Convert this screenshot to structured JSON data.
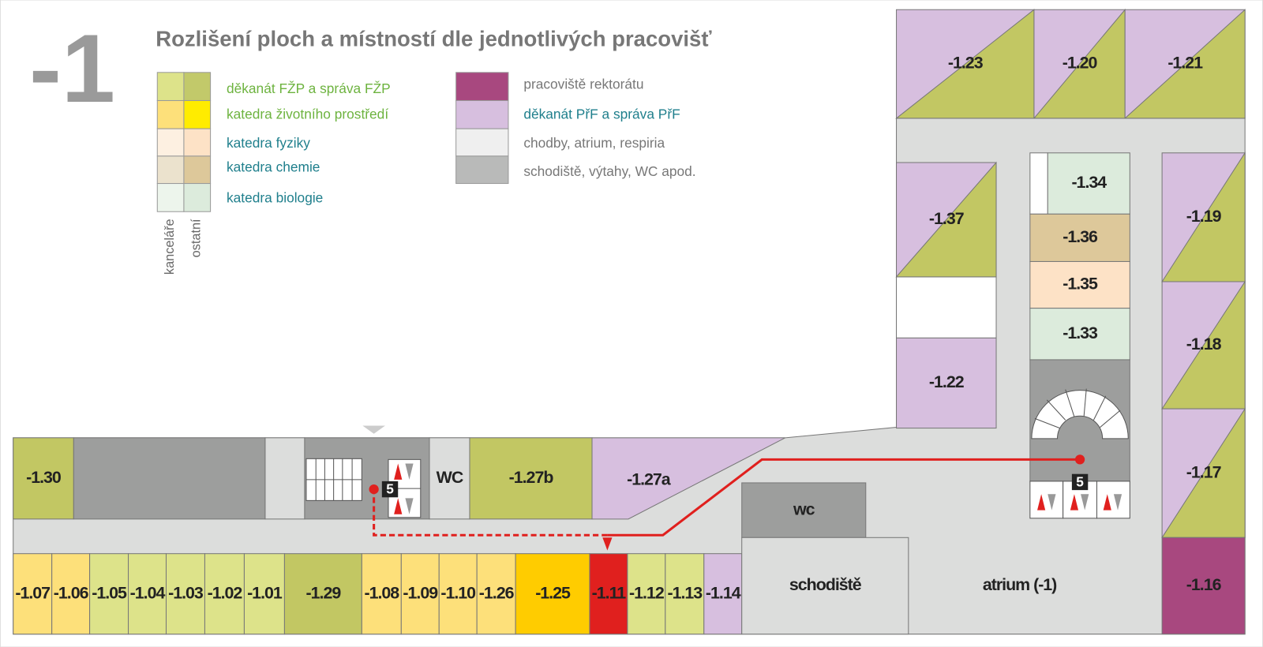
{
  "floor": "-1",
  "title": "Rozlišení ploch a místností dle jednotlivých pracovišť",
  "legend": {
    "column_labels": [
      "kanceláře",
      "ostatní"
    ],
    "items": [
      "děkanát FŽP a správa FŽP",
      "katedra životního prostředí",
      "katedra fyziky",
      "katedra chemie",
      "katedra biologie"
    ],
    "items2": [
      "pracoviště rektorátu",
      "děkanát PřF a správa PřF",
      "chodby, atrium, respiria",
      "schodiště, výtahy, WC apod."
    ]
  },
  "rooms": [
    "-1.07",
    "-1.06",
    "-1.05",
    "-1.04",
    "-1.03",
    "-1.02",
    "-1.01",
    "-1.29",
    "-1.08",
    "-1.09",
    "-1.10",
    "-1.26",
    "-1.25",
    "-1.11",
    "-1.12",
    "-1.13",
    "-1.14",
    "-1.30",
    "WC",
    "-1.27b",
    "-1.27a",
    "wc",
    "schodiště",
    "atrium (-1)",
    "-1.23",
    "-1.20",
    "-1.21",
    "-1.37",
    "-1.22",
    "-1.34",
    "-1.36",
    "-1.35",
    "-1.33",
    "-1.19",
    "-1.18",
    "-1.17",
    "-1.16"
  ],
  "markers": [
    "5",
    "5"
  ]
}
